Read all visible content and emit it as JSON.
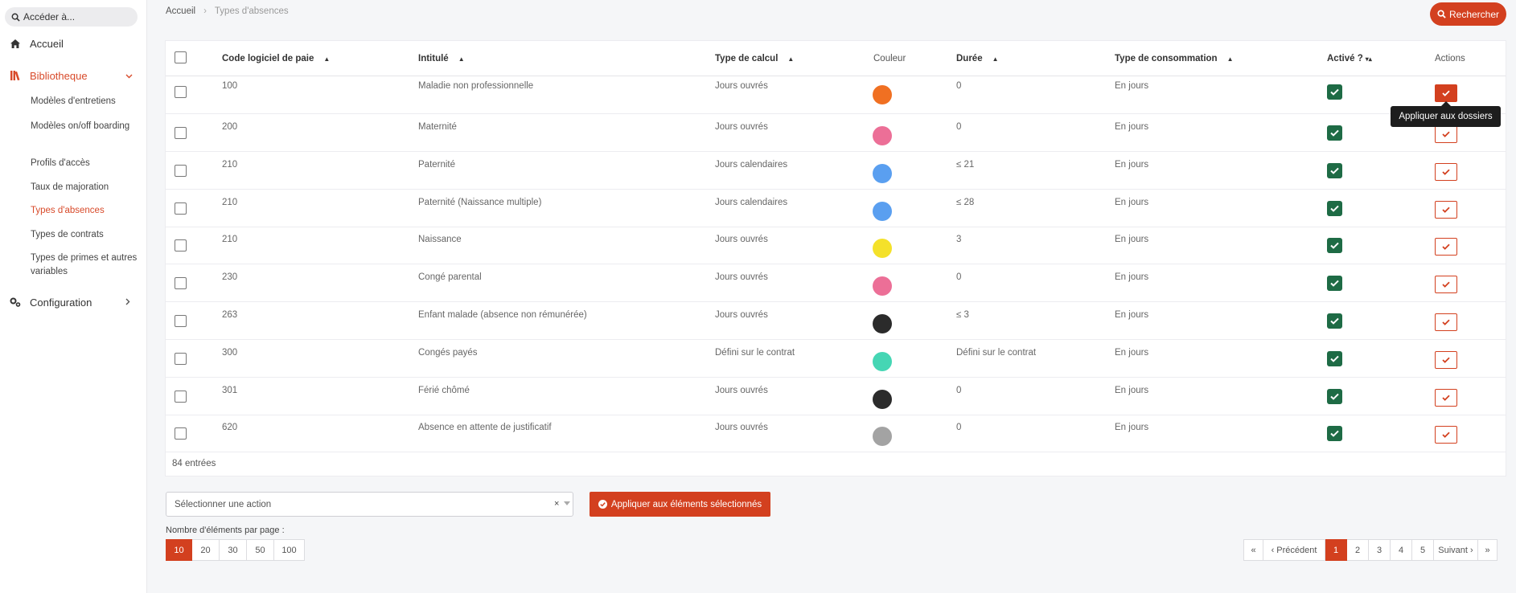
{
  "search": {
    "placeholder": "Accéder à..."
  },
  "sidebar": {
    "home": "Accueil",
    "library": "Bibliotheque",
    "library_items": [
      "Modèles d'entretiens",
      "Modèles on/off boarding",
      "Profils d'accès",
      "Taux de majoration",
      "Types d'absences",
      "Types de contrats",
      "Types de primes et autres variables"
    ],
    "configuration": "Configuration"
  },
  "breadcrumb": {
    "home": "Accueil",
    "current": "Types d'absences"
  },
  "toolbar": {
    "search_button": "Rechercher"
  },
  "table": {
    "columns": {
      "code": "Code logiciel de paie",
      "label": "Intitulé",
      "calc": "Type de calcul",
      "color": "Couleur",
      "duration": "Durée",
      "consumption": "Type de consommation",
      "active": "Activé ?",
      "actions": "Actions"
    },
    "rows": [
      {
        "code": "100",
        "label": "Maladie non professionnelle",
        "calc": "Jours ouvrés",
        "color": "#f07022",
        "duration": "0",
        "consumption": "En jours"
      },
      {
        "code": "200",
        "label": "Maternité",
        "calc": "Jours ouvrés",
        "color": "#ec6f97",
        "duration": "0",
        "consumption": "En jours"
      },
      {
        "code": "210",
        "label": "Paternité",
        "calc": "Jours calendaires",
        "color": "#5a9ff0",
        "duration": "≤ 21",
        "consumption": "En jours"
      },
      {
        "code": "210",
        "label": "Paternité (Naissance multiple)",
        "calc": "Jours calendaires",
        "color": "#5a9ff0",
        "duration": "≤ 28",
        "consumption": "En jours"
      },
      {
        "code": "210",
        "label": "Naissance",
        "calc": "Jours ouvrés",
        "color": "#f4e12a",
        "duration": "3",
        "consumption": "En jours"
      },
      {
        "code": "230",
        "label": "Congé parental",
        "calc": "Jours ouvrés",
        "color": "#ec6f97",
        "duration": "0",
        "consumption": "En jours"
      },
      {
        "code": "263",
        "label": "Enfant malade (absence non rémunérée)",
        "calc": "Jours ouvrés",
        "color": "#2b2b2b",
        "duration": "≤ 3",
        "consumption": "En jours"
      },
      {
        "code": "300",
        "label": "Congés payés",
        "calc": "Défini sur le contrat",
        "color": "#45d6b4",
        "duration": "Défini sur le contrat",
        "consumption": "En jours"
      },
      {
        "code": "301",
        "label": "Férié chômé",
        "calc": "Jours ouvrés",
        "color": "#2b2b2b",
        "duration": "0",
        "consumption": "En jours"
      },
      {
        "code": "620",
        "label": "Absence en attente de justificatif",
        "calc": "Jours ouvrés",
        "color": "#a3a3a3",
        "duration": "0",
        "consumption": "En jours"
      }
    ],
    "count": "84 entrées",
    "tooltip": "Appliquer aux dossiers"
  },
  "bulk": {
    "select_placeholder": "Sélectionner une action",
    "clear": "×",
    "apply_button": "Appliquer aux éléments sélectionnés"
  },
  "per_page": {
    "label": "Nombre d'éléments par page :",
    "options": [
      "10",
      "20",
      "30",
      "50",
      "100"
    ],
    "selected": "10"
  },
  "pagination": {
    "first": "«",
    "prev": "‹ Précédent",
    "pages": [
      "1",
      "2",
      "3",
      "4",
      "5"
    ],
    "current": "1",
    "next": "Suivant ›",
    "last": "»"
  },
  "colors": {
    "accent": "#d3401f",
    "active_check": "#1e6b45"
  }
}
